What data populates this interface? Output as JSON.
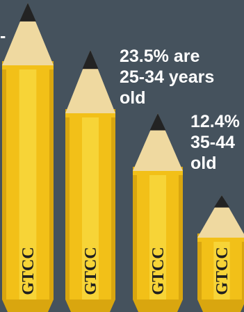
{
  "chart_data": {
    "type": "bar",
    "categories": [
      "GTCC",
      "GTCC",
      "GTCC",
      "GTCC"
    ],
    "values": [
      null,
      23.5,
      12.4,
      null
    ],
    "annotations": [
      {
        "pct": "23.5",
        "suffix": "% are",
        "line2": "25-34 years",
        "line3": "old"
      },
      {
        "pct": "12.4",
        "suffix": "%",
        "line2": "35-44",
        "line3": "old"
      }
    ],
    "marker": "-"
  },
  "colors": {
    "background": "#45525d",
    "pencil_body": "#f2c018",
    "pencil_ridge": "#f7d437",
    "pencil_shadow": "#d9a60f",
    "wood": "#efd9a0",
    "lead": "#232323",
    "text": "#ffffff"
  }
}
